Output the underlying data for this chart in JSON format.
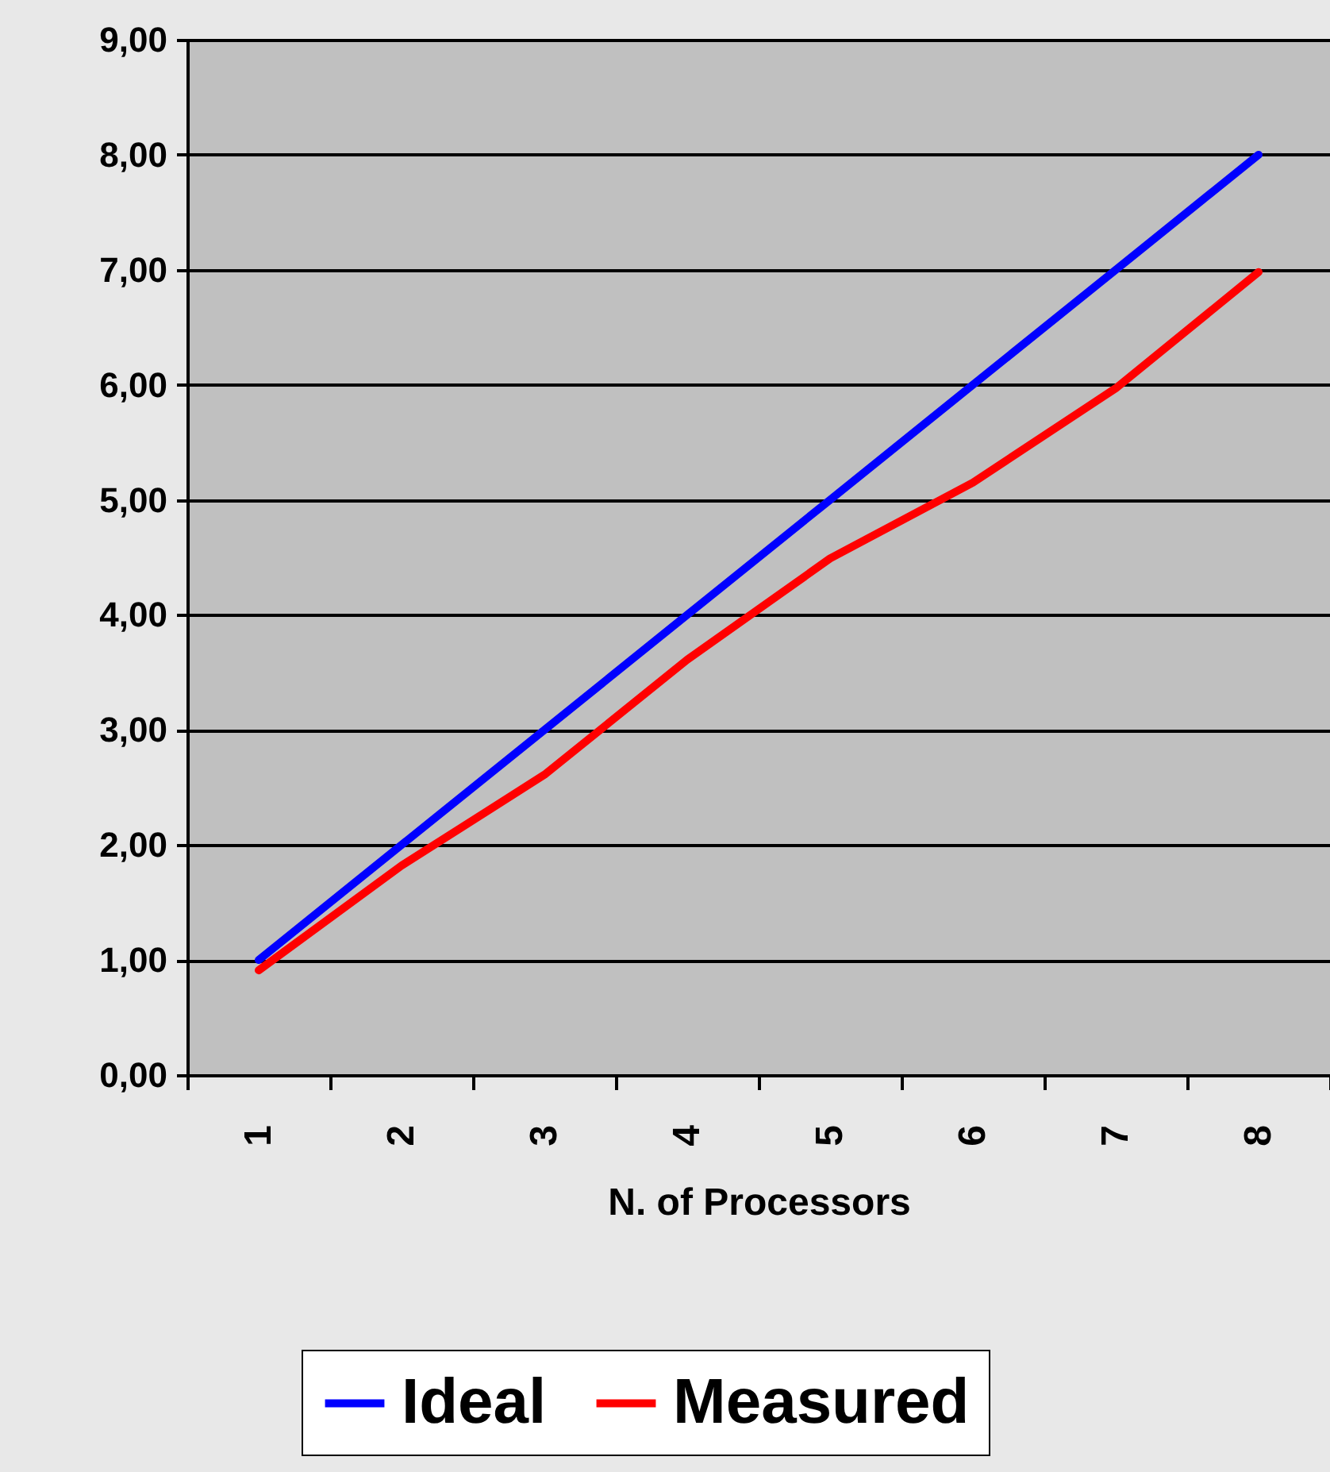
{
  "chart_data": {
    "type": "line",
    "xlabel": "N. of Processors",
    "categories": [
      "1",
      "2",
      "3",
      "4",
      "5",
      "6",
      "7",
      "8"
    ],
    "series": [
      {
        "name": "Ideal",
        "color": "#0000ff",
        "values": [
          1,
          2,
          3,
          4,
          5,
          6,
          7,
          8
        ]
      },
      {
        "name": "Measured",
        "color": "#ff0000",
        "values": [
          0.91,
          1.82,
          2.61,
          3.61,
          4.49,
          5.15,
          5.97,
          6.98
        ]
      }
    ],
    "ylim": [
      0,
      9
    ],
    "yticks": [
      {
        "value": 0,
        "label": "0,00"
      },
      {
        "value": 1,
        "label": "1,00"
      },
      {
        "value": 2,
        "label": "2,00"
      },
      {
        "value": 3,
        "label": "3,00"
      },
      {
        "value": 4,
        "label": "4,00"
      },
      {
        "value": 5,
        "label": "5,00"
      },
      {
        "value": 6,
        "label": "6,00"
      },
      {
        "value": 7,
        "label": "7,00"
      },
      {
        "value": 8,
        "label": "8,00"
      },
      {
        "value": 9,
        "label": "9,00"
      }
    ],
    "grid": "y",
    "legend": "bottom"
  }
}
